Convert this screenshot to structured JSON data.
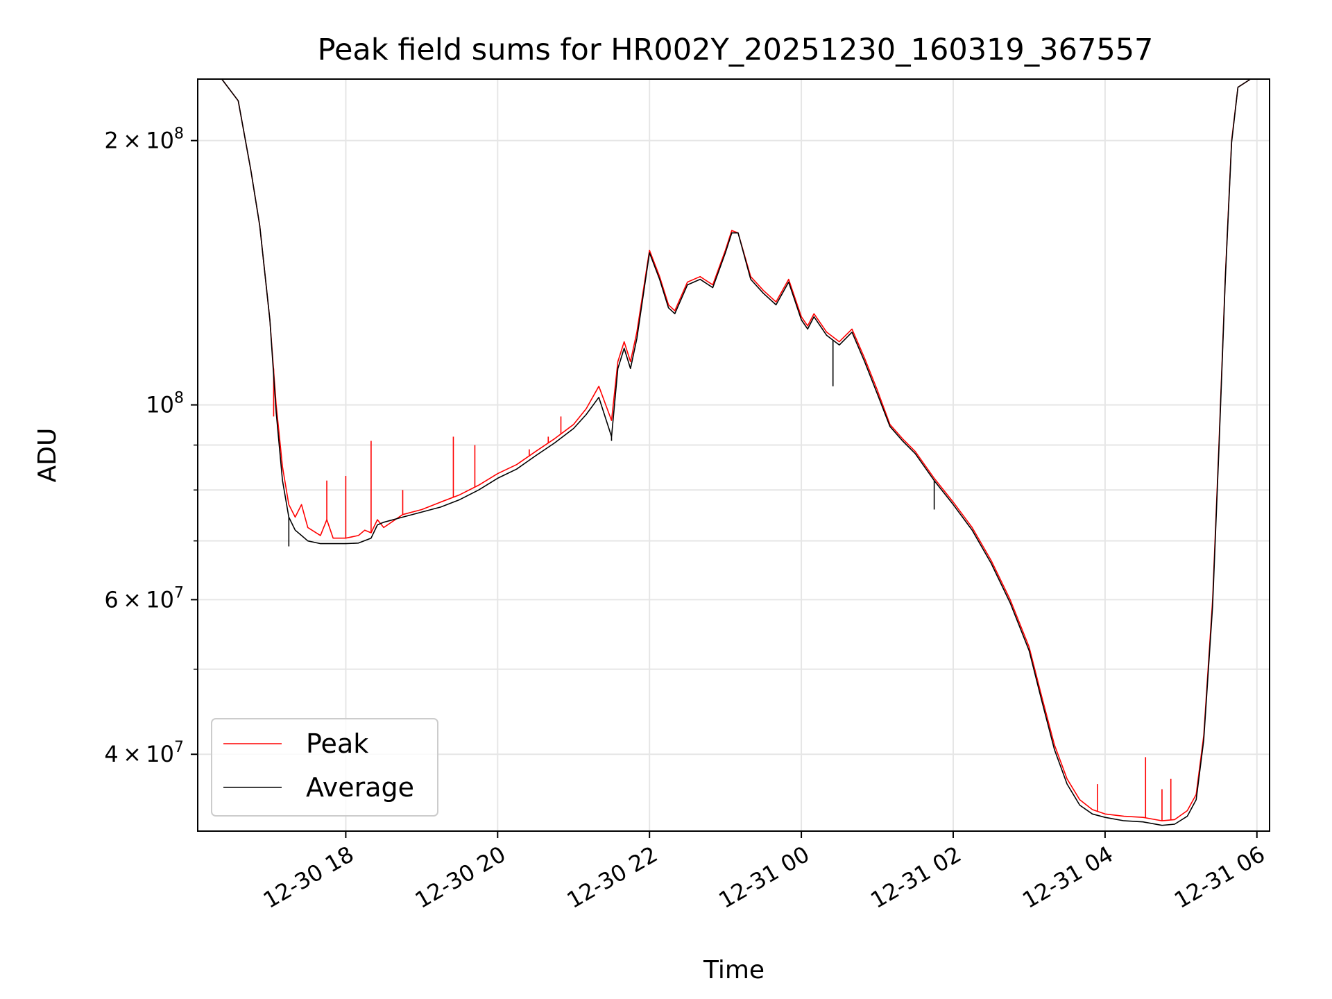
{
  "chart_data": {
    "type": "line",
    "title": "Peak field sums for HR002Y_20251230_160319_367557",
    "xlabel": "Time",
    "ylabel": "ADU",
    "y_scale": "log",
    "ylim": [
      32700000,
      235000000
    ],
    "xlim": [
      "2025-12-30 16:03",
      "2025-12-31 06:10"
    ],
    "grid": true,
    "legend_position": "lower-left",
    "x_ticks": [
      {
        "t": "2025-12-30 18:00",
        "label": "12-30 18"
      },
      {
        "t": "2025-12-30 20:00",
        "label": "12-30 20"
      },
      {
        "t": "2025-12-30 22:00",
        "label": "12-30 22"
      },
      {
        "t": "2025-12-31 00:00",
        "label": "12-31 00"
      },
      {
        "t": "2025-12-31 02:00",
        "label": "12-31 02"
      },
      {
        "t": "2025-12-31 04:00",
        "label": "12-31 04"
      },
      {
        "t": "2025-12-31 06:00",
        "label": "12-31 06"
      }
    ],
    "y_ticks_major": [
      {
        "value": 40000000,
        "base": "4",
        "exp": "7"
      },
      {
        "value": 60000000,
        "base": "6",
        "exp": "7"
      },
      {
        "value": 100000000,
        "base": "",
        "exp": "8"
      },
      {
        "value": 200000000,
        "base": "2",
        "exp": "8"
      }
    ],
    "y_ticks_minor": [
      50000000,
      70000000,
      80000000,
      90000000
    ],
    "series": [
      {
        "name": "Peak",
        "color": "#ff0000",
        "points": [
          [
            "2025-12-30 16:22",
            235000000
          ],
          [
            "2025-12-30 16:35",
            222000000
          ],
          [
            "2025-12-30 16:45",
            185000000
          ],
          [
            "2025-12-30 16:52",
            160000000
          ],
          [
            "2025-12-30 17:00",
            125000000
          ],
          [
            "2025-12-30 17:05",
            100000000
          ],
          [
            "2025-12-30 17:10",
            85000000
          ],
          [
            "2025-12-30 17:15",
            77000000
          ],
          [
            "2025-12-30 17:20",
            74500000
          ],
          [
            "2025-12-30 17:25",
            77000000
          ],
          [
            "2025-12-30 17:30",
            72500000
          ],
          [
            "2025-12-30 17:40",
            71000000
          ],
          [
            "2025-12-30 17:45",
            74000000
          ],
          [
            "2025-12-30 17:50",
            70500000
          ],
          [
            "2025-12-30 18:00",
            70500000
          ],
          [
            "2025-12-30 18:10",
            71000000
          ],
          [
            "2025-12-30 18:15",
            72000000
          ],
          [
            "2025-12-30 18:20",
            71500000
          ],
          [
            "2025-12-30 18:25",
            74000000
          ],
          [
            "2025-12-30 18:30",
            72500000
          ],
          [
            "2025-12-30 18:45",
            75000000
          ],
          [
            "2025-12-30 19:00",
            76000000
          ],
          [
            "2025-12-30 19:15",
            77500000
          ],
          [
            "2025-12-30 19:30",
            79000000
          ],
          [
            "2025-12-30 19:45",
            81000000
          ],
          [
            "2025-12-30 20:00",
            83500000
          ],
          [
            "2025-12-30 20:15",
            85500000
          ],
          [
            "2025-12-30 20:30",
            88500000
          ],
          [
            "2025-12-30 20:45",
            91500000
          ],
          [
            "2025-12-30 21:00",
            95000000
          ],
          [
            "2025-12-30 21:10",
            99000000
          ],
          [
            "2025-12-30 21:20",
            105000000
          ],
          [
            "2025-12-30 21:30",
            96000000
          ],
          [
            "2025-12-30 21:35",
            112000000
          ],
          [
            "2025-12-30 21:40",
            118000000
          ],
          [
            "2025-12-30 21:45",
            112000000
          ],
          [
            "2025-12-30 21:50",
            121000000
          ],
          [
            "2025-12-30 22:00",
            150000000
          ],
          [
            "2025-12-30 22:08",
            140000000
          ],
          [
            "2025-12-30 22:15",
            130000000
          ],
          [
            "2025-12-30 22:20",
            128000000
          ],
          [
            "2025-12-30 22:30",
            138000000
          ],
          [
            "2025-12-30 22:40",
            140000000
          ],
          [
            "2025-12-30 22:50",
            137000000
          ],
          [
            "2025-12-30 23:00",
            150000000
          ],
          [
            "2025-12-30 23:05",
            158000000
          ],
          [
            "2025-12-30 23:10",
            157000000
          ],
          [
            "2025-12-30 23:20",
            140000000
          ],
          [
            "2025-12-30 23:30",
            135000000
          ],
          [
            "2025-12-30 23:40",
            131000000
          ],
          [
            "2025-12-30 23:50",
            139000000
          ],
          [
            "2025-12-31 00:00",
            126000000
          ],
          [
            "2025-12-31 00:05",
            123000000
          ],
          [
            "2025-12-31 00:10",
            127000000
          ],
          [
            "2025-12-31 00:20",
            121000000
          ],
          [
            "2025-12-31 00:30",
            118000000
          ],
          [
            "2025-12-31 00:40",
            122000000
          ],
          [
            "2025-12-31 00:50",
            113000000
          ],
          [
            "2025-12-31 01:00",
            104000000
          ],
          [
            "2025-12-31 01:10",
            95000000
          ],
          [
            "2025-12-31 01:20",
            91500000
          ],
          [
            "2025-12-31 01:30",
            88500000
          ],
          [
            "2025-12-31 01:45",
            82500000
          ],
          [
            "2025-12-31 02:00",
            77500000
          ],
          [
            "2025-12-31 02:15",
            72500000
          ],
          [
            "2025-12-31 02:30",
            66500000
          ],
          [
            "2025-12-31 02:45",
            60000000
          ],
          [
            "2025-12-31 03:00",
            53000000
          ],
          [
            "2025-12-31 03:10",
            46500000
          ],
          [
            "2025-12-31 03:20",
            41000000
          ],
          [
            "2025-12-31 03:30",
            37500000
          ],
          [
            "2025-12-31 03:40",
            35500000
          ],
          [
            "2025-12-31 03:50",
            34600000
          ],
          [
            "2025-12-31 04:00",
            34200000
          ],
          [
            "2025-12-31 04:15",
            34000000
          ],
          [
            "2025-12-31 04:30",
            33900000
          ],
          [
            "2025-12-31 04:45",
            33600000
          ],
          [
            "2025-12-31 04:55",
            33700000
          ],
          [
            "2025-12-31 05:05",
            34500000
          ],
          [
            "2025-12-31 05:12",
            36000000
          ],
          [
            "2025-12-31 05:18",
            42000000
          ],
          [
            "2025-12-31 05:25",
            60000000
          ],
          [
            "2025-12-31 05:30",
            90000000
          ],
          [
            "2025-12-31 05:35",
            140000000
          ],
          [
            "2025-12-31 05:40",
            200000000
          ],
          [
            "2025-12-31 05:45",
            230000000
          ],
          [
            "2025-12-31 05:55",
            235000000
          ],
          [
            "2025-12-31 06:10",
            235000000
          ]
        ],
        "spikes": [
          [
            "2025-12-30 17:03",
            97000000
          ],
          [
            "2025-12-30 17:45",
            82000000
          ],
          [
            "2025-12-30 18:00",
            83000000
          ],
          [
            "2025-12-30 18:20",
            91000000
          ],
          [
            "2025-12-30 18:45",
            80000000
          ],
          [
            "2025-12-30 19:25",
            92000000
          ],
          [
            "2025-12-30 19:42",
            90000000
          ],
          [
            "2025-12-30 20:25",
            89000000
          ],
          [
            "2025-12-30 20:40",
            92000000
          ],
          [
            "2025-12-30 20:50",
            97000000
          ],
          [
            "2025-12-31 03:54",
            37000000
          ],
          [
            "2025-12-31 04:32",
            39700000
          ],
          [
            "2025-12-31 04:45",
            36500000
          ],
          [
            "2025-12-31 04:52",
            37500000
          ]
        ]
      },
      {
        "name": "Average",
        "color": "#000000",
        "points": [
          [
            "2025-12-30 16:22",
            235000000
          ],
          [
            "2025-12-30 16:35",
            222000000
          ],
          [
            "2025-12-30 16:45",
            185000000
          ],
          [
            "2025-12-30 16:52",
            160000000
          ],
          [
            "2025-12-30 17:00",
            125000000
          ],
          [
            "2025-12-30 17:05",
            98000000
          ],
          [
            "2025-12-30 17:10",
            82000000
          ],
          [
            "2025-12-30 17:15",
            74500000
          ],
          [
            "2025-12-30 17:20",
            72000000
          ],
          [
            "2025-12-30 17:25",
            71000000
          ],
          [
            "2025-12-30 17:30",
            70000000
          ],
          [
            "2025-12-30 17:40",
            69500000
          ],
          [
            "2025-12-30 17:50",
            69500000
          ],
          [
            "2025-12-30 18:00",
            69500000
          ],
          [
            "2025-12-30 18:10",
            69600000
          ],
          [
            "2025-12-30 18:20",
            70500000
          ],
          [
            "2025-12-30 18:25",
            73000000
          ],
          [
            "2025-12-30 18:30",
            73500000
          ],
          [
            "2025-12-30 18:45",
            74500000
          ],
          [
            "2025-12-30 19:00",
            75500000
          ],
          [
            "2025-12-30 19:15",
            76500000
          ],
          [
            "2025-12-30 19:30",
            78000000
          ],
          [
            "2025-12-30 19:45",
            80000000
          ],
          [
            "2025-12-30 20:00",
            82500000
          ],
          [
            "2025-12-30 20:15",
            84500000
          ],
          [
            "2025-12-30 20:30",
            87500000
          ],
          [
            "2025-12-30 20:45",
            90500000
          ],
          [
            "2025-12-30 21:00",
            94000000
          ],
          [
            "2025-12-30 21:10",
            97500000
          ],
          [
            "2025-12-30 21:20",
            102000000
          ],
          [
            "2025-12-30 21:30",
            92000000
          ],
          [
            "2025-12-30 21:35",
            110000000
          ],
          [
            "2025-12-30 21:40",
            116000000
          ],
          [
            "2025-12-30 21:45",
            110000000
          ],
          [
            "2025-12-30 21:50",
            119000000
          ],
          [
            "2025-12-30 22:00",
            149000000
          ],
          [
            "2025-12-30 22:08",
            139000000
          ],
          [
            "2025-12-30 22:15",
            129000000
          ],
          [
            "2025-12-30 22:20",
            127000000
          ],
          [
            "2025-12-30 22:30",
            137000000
          ],
          [
            "2025-12-30 22:40",
            139000000
          ],
          [
            "2025-12-30 22:50",
            136000000
          ],
          [
            "2025-12-30 23:00",
            149000000
          ],
          [
            "2025-12-30 23:05",
            157000000
          ],
          [
            "2025-12-30 23:10",
            157000000
          ],
          [
            "2025-12-30 23:20",
            139000000
          ],
          [
            "2025-12-30 23:30",
            134000000
          ],
          [
            "2025-12-30 23:40",
            130000000
          ],
          [
            "2025-12-30 23:50",
            138000000
          ],
          [
            "2025-12-31 00:00",
            125000000
          ],
          [
            "2025-12-31 00:05",
            122000000
          ],
          [
            "2025-12-31 00:10",
            126000000
          ],
          [
            "2025-12-31 00:20",
            120000000
          ],
          [
            "2025-12-31 00:30",
            117000000
          ],
          [
            "2025-12-31 00:40",
            121000000
          ],
          [
            "2025-12-31 00:50",
            112000000
          ],
          [
            "2025-12-31 01:00",
            103000000
          ],
          [
            "2025-12-31 01:10",
            94500000
          ],
          [
            "2025-12-31 01:20",
            91000000
          ],
          [
            "2025-12-31 01:30",
            88000000
          ],
          [
            "2025-12-31 01:45",
            82000000
          ],
          [
            "2025-12-31 02:00",
            77000000
          ],
          [
            "2025-12-31 02:15",
            72000000
          ],
          [
            "2025-12-31 02:30",
            66000000
          ],
          [
            "2025-12-31 02:45",
            59500000
          ],
          [
            "2025-12-31 03:00",
            52500000
          ],
          [
            "2025-12-31 03:10",
            46000000
          ],
          [
            "2025-12-31 03:20",
            40500000
          ],
          [
            "2025-12-31 03:30",
            37000000
          ],
          [
            "2025-12-31 03:40",
            35000000
          ],
          [
            "2025-12-31 03:50",
            34200000
          ],
          [
            "2025-12-31 04:00",
            33900000
          ],
          [
            "2025-12-31 04:15",
            33600000
          ],
          [
            "2025-12-31 04:30",
            33500000
          ],
          [
            "2025-12-31 04:45",
            33200000
          ],
          [
            "2025-12-31 04:55",
            33300000
          ],
          [
            "2025-12-31 05:05",
            34000000
          ],
          [
            "2025-12-31 05:12",
            35500000
          ],
          [
            "2025-12-31 05:18",
            41500000
          ],
          [
            "2025-12-31 05:25",
            59000000
          ],
          [
            "2025-12-31 05:30",
            89000000
          ],
          [
            "2025-12-31 05:35",
            139000000
          ],
          [
            "2025-12-31 05:40",
            199000000
          ],
          [
            "2025-12-31 05:45",
            230000000
          ],
          [
            "2025-12-31 05:55",
            235000000
          ],
          [
            "2025-12-31 06:10",
            235000000
          ]
        ],
        "spikes": [
          [
            "2025-12-30 21:30",
            91000000
          ],
          [
            "2025-12-31 00:25",
            105000000
          ],
          [
            "2025-12-31 01:45",
            76000000
          ],
          [
            "2025-12-30 17:15",
            69000000
          ]
        ]
      }
    ]
  }
}
